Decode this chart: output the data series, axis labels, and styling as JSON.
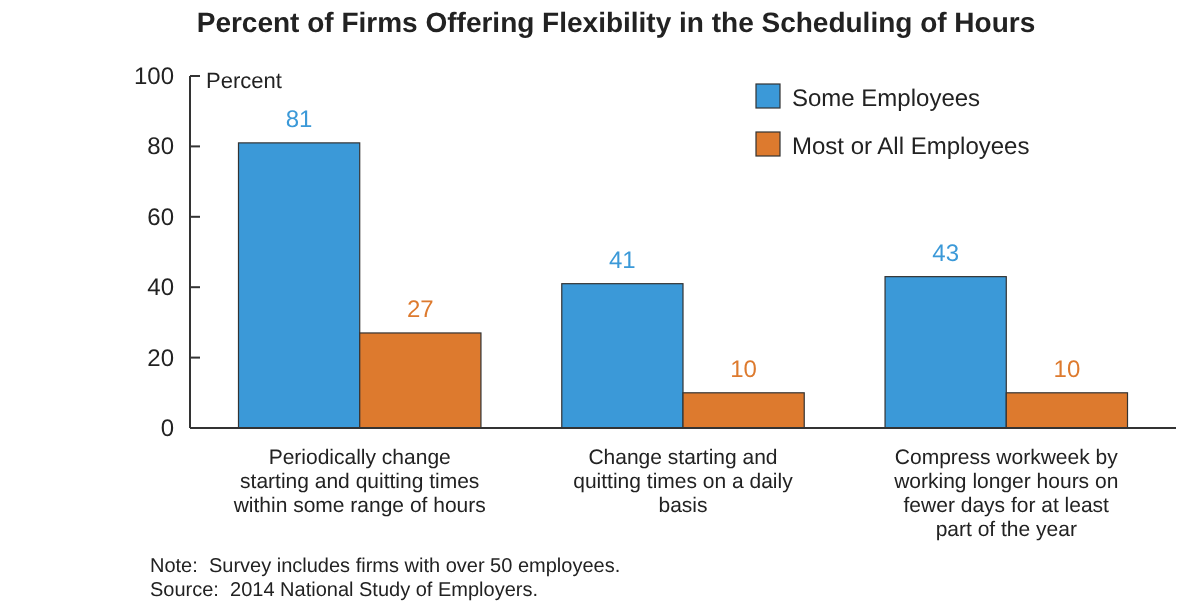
{
  "chart_data": {
    "type": "bar",
    "title": "Percent of Firms Offering Flexibility in the Scheduling of Hours",
    "ylabel": "Percent",
    "categories": [
      "Periodically change starting and quitting times within some range of hours",
      "Change starting and quitting times on a daily basis",
      "Compress workweek by working longer hours on fewer days for at least part of the year"
    ],
    "series": [
      {
        "name": "Some Employees",
        "color": "#3b99d8",
        "values": [
          81,
          41,
          43
        ]
      },
      {
        "name": "Most or All Employees",
        "color": "#dd7a2e",
        "values": [
          27,
          10,
          10
        ]
      }
    ],
    "ylim": [
      0,
      100
    ],
    "yticks": [
      0,
      20,
      40,
      60,
      80,
      100
    ],
    "grid": false,
    "legend": "top right",
    "data_labels": true,
    "annotations": [
      "Note:  Survey includes firms with over 50 employees.",
      "Source:  2014 National Study of Employers."
    ]
  }
}
